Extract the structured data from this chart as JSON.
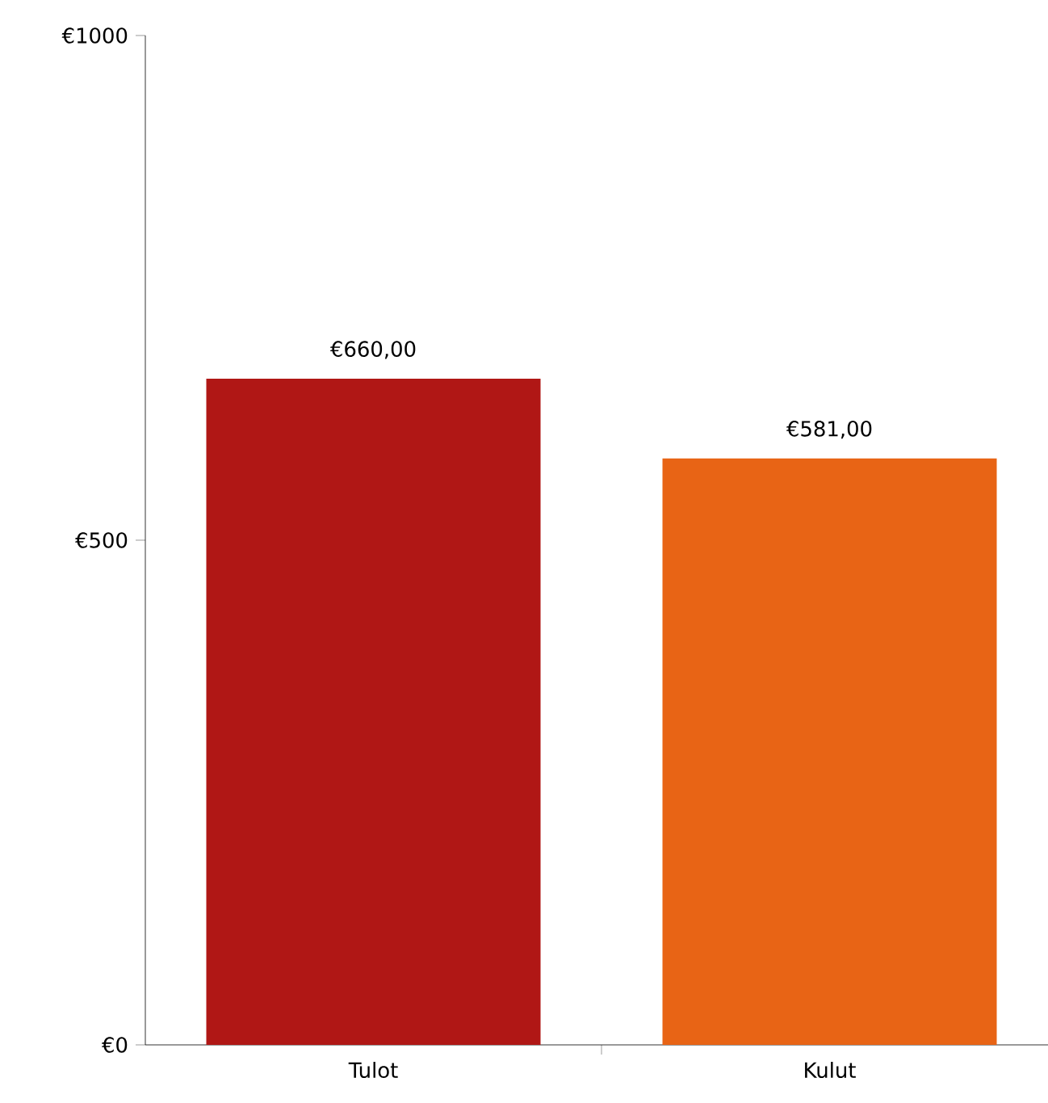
{
  "chart_data": {
    "type": "bar",
    "categories": [
      "Tulot",
      "Kulut"
    ],
    "values": [
      660,
      581
    ],
    "colors": [
      "#b01715",
      "#e86415"
    ],
    "value_labels": [
      "€660,00",
      "€581,00"
    ],
    "ylim": [
      0,
      1000
    ],
    "yticks": [
      {
        "value": 0,
        "label": "€0"
      },
      {
        "value": 500,
        "label": "€500"
      },
      {
        "value": 1000,
        "label": "€1000"
      }
    ],
    "grid": false
  }
}
